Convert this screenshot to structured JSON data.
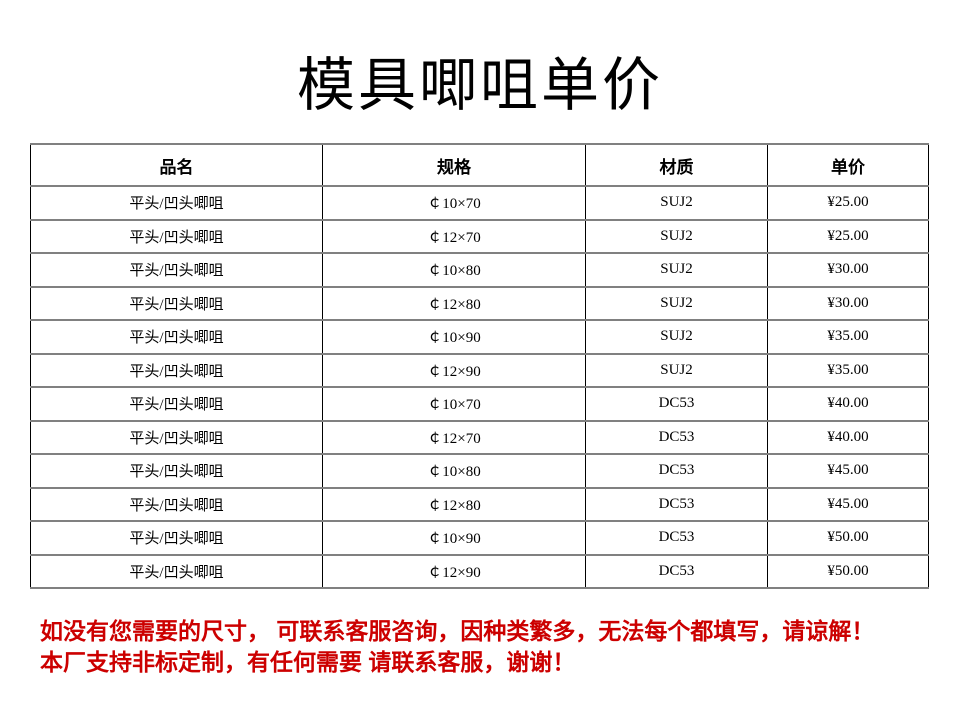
{
  "slide": {
    "title": "模具唧咀单价"
  },
  "table": {
    "headers": [
      "品名",
      "规格",
      "材质",
      "单价"
    ],
    "rows": [
      [
        "平头/凹头唧咀",
        "￠10×70",
        "SUJ2",
        "¥25.00"
      ],
      [
        "平头/凹头唧咀",
        "￠12×70",
        "SUJ2",
        "¥25.00"
      ],
      [
        "平头/凹头唧咀",
        "￠10×80",
        "SUJ2",
        "¥30.00"
      ],
      [
        "平头/凹头唧咀",
        "￠12×80",
        "SUJ2",
        "¥30.00"
      ],
      [
        "平头/凹头唧咀",
        "￠10×90",
        "SUJ2",
        "¥35.00"
      ],
      [
        "平头/凹头唧咀",
        "￠12×90",
        "SUJ2",
        "¥35.00"
      ],
      [
        "平头/凹头唧咀",
        "￠10×70",
        "DC53",
        "¥40.00"
      ],
      [
        "平头/凹头唧咀",
        "￠12×70",
        "DC53",
        "¥40.00"
      ],
      [
        "平头/凹头唧咀",
        "￠10×80",
        "DC53",
        "¥45.00"
      ],
      [
        "平头/凹头唧咀",
        "￠12×80",
        "DC53",
        "¥45.00"
      ],
      [
        "平头/凹头唧咀",
        "￠10×90",
        "DC53",
        "¥50.00"
      ],
      [
        "平头/凹头唧咀",
        "￠12×90",
        "DC53",
        "¥50.00"
      ]
    ]
  },
  "footer": {
    "line1": "如没有您需要的尺寸， 可联系客服咨询，因种类繁多，无法每个都填写，请谅解！",
    "line2": "本厂支持非标定制，有任何需要 请联系客服，谢谢！",
    "color": "#cc0000"
  },
  "colors": {
    "background": "#ffffff",
    "text": "#000000",
    "grid_line": "#000000",
    "row_line": "#808080",
    "footer_red": "#cc0000"
  }
}
